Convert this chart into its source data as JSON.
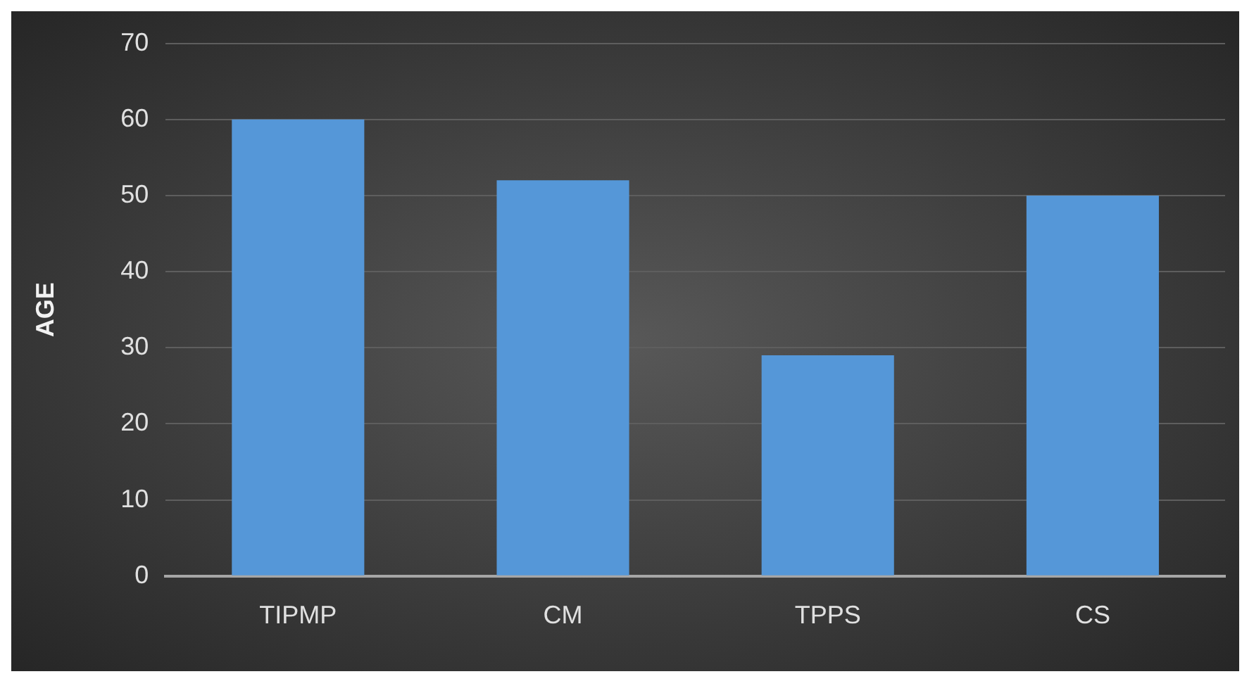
{
  "chart_data": {
    "type": "bar",
    "ylabel": "AGE",
    "categories": [
      "TIPMP",
      "CM",
      "TPPS",
      "CS"
    ],
    "values": [
      60,
      52,
      29,
      50
    ],
    "color": "#5597d8",
    "ylim": [
      0,
      70
    ],
    "yticks": [
      0,
      10,
      20,
      30,
      40,
      50,
      60,
      70
    ],
    "grid": "y"
  }
}
